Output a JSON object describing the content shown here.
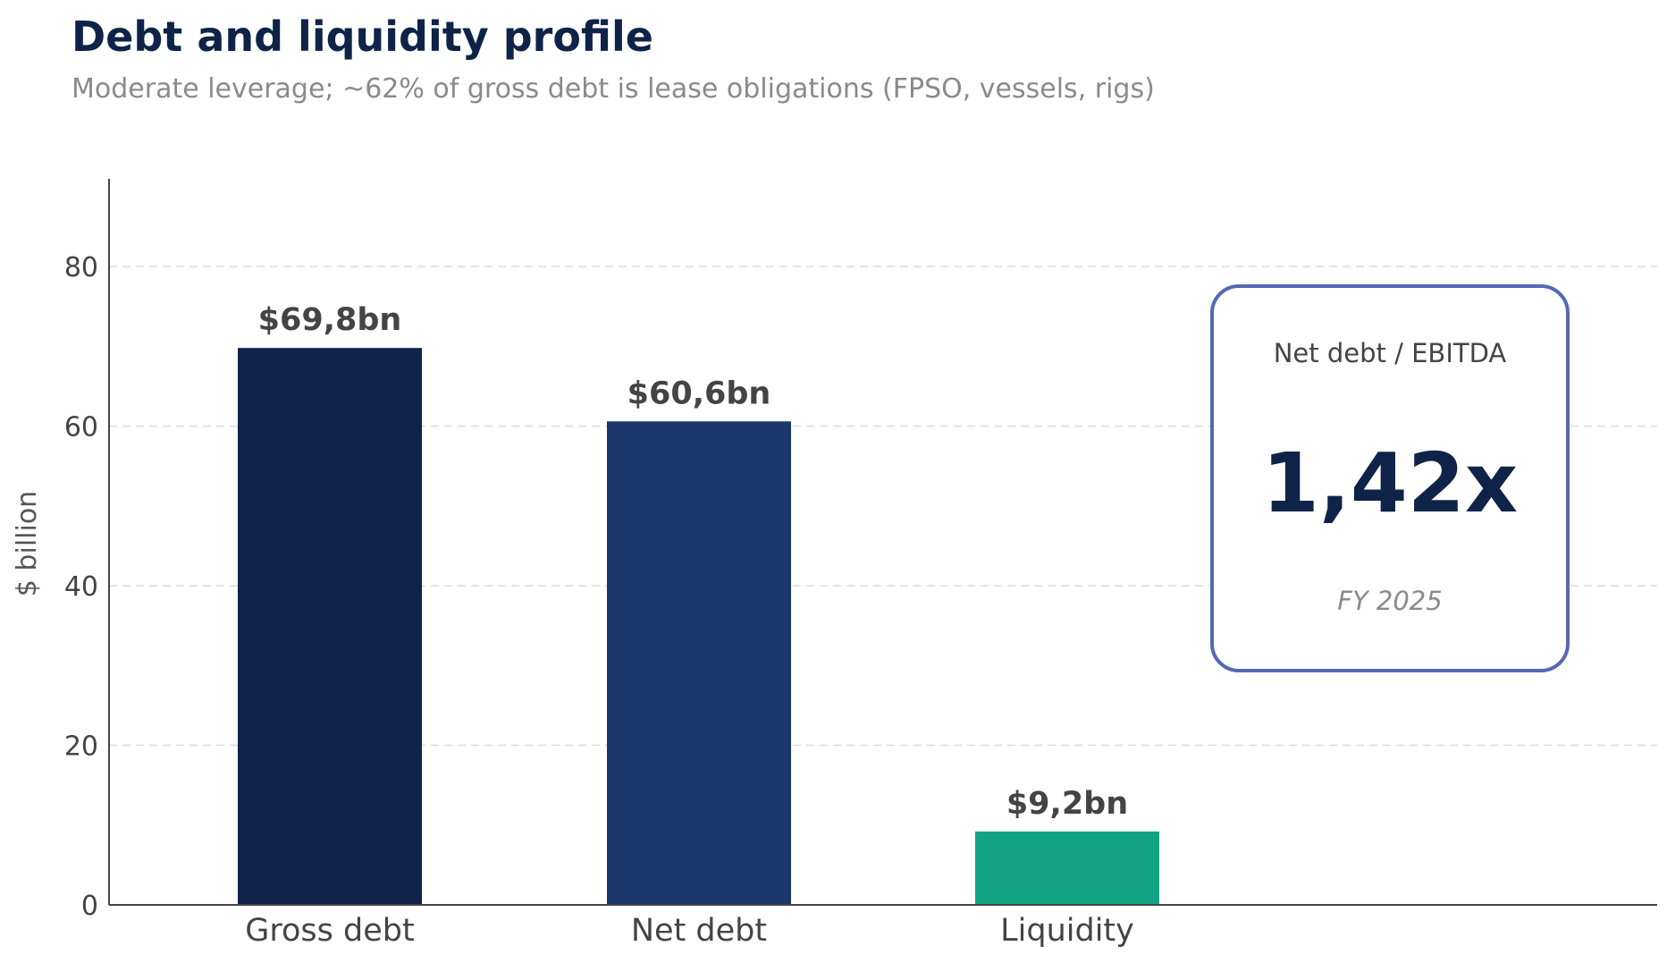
{
  "title": "Debt and liquidity profile",
  "subtitle": "Moderate leverage; ~62% of gross debt is lease obligations (FPSO, vessels, rigs)",
  "chart_data": {
    "type": "bar",
    "categories": [
      "Gross debt",
      "Net debt",
      "Liquidity"
    ],
    "values": [
      69.8,
      60.6,
      9.2
    ],
    "data_labels": [
      "$69,8bn",
      "$60,6bn",
      "$9,2bn"
    ],
    "colors": [
      "#0e2347",
      "#1b366b",
      "#12a482"
    ],
    "xlabel": "",
    "ylabel": "$ billion",
    "ylim": [
      0,
      91
    ],
    "yticks": [
      0,
      20,
      40,
      60,
      80
    ],
    "grid": "horizontal dashed",
    "annotation": {
      "label": "Net debt / EBITDA",
      "value": "1,42x",
      "period": "FY 2025",
      "border_color": "#5468b5"
    }
  }
}
